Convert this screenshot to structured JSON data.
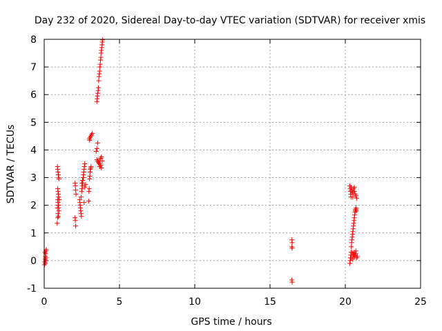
{
  "chart_data": {
    "type": "scatter",
    "title": "Day 232 of 2020, Sidereal Day-to-day VTEC variation (SDTVAR) for receiver xmis",
    "xlabel": "GPS time / hours",
    "ylabel": "SDTVAR / TECUs",
    "xlim": [
      0,
      25
    ],
    "ylim": [
      -1,
      8
    ],
    "xticks": [
      0,
      5,
      10,
      15,
      20,
      25
    ],
    "yticks": [
      -1,
      0,
      1,
      2,
      3,
      4,
      5,
      6,
      7,
      8
    ],
    "grid": true,
    "marker": "+",
    "color": "#ff0000",
    "series": [
      {
        "name": "SDTVAR",
        "points": [
          [
            0.02,
            -0.15
          ],
          [
            0.04,
            -0.05
          ],
          [
            0.06,
            0.05
          ],
          [
            0.08,
            0.15
          ],
          [
            0.1,
            0.25
          ],
          [
            0.12,
            0.35
          ],
          [
            0.14,
            0.4
          ],
          [
            0.08,
            -0.1
          ],
          [
            0.1,
            0.0
          ],
          [
            0.12,
            0.1
          ],
          [
            0.05,
            0.3
          ],
          [
            0.88,
            3.4
          ],
          [
            0.9,
            3.3
          ],
          [
            0.92,
            3.2
          ],
          [
            0.94,
            3.1
          ],
          [
            0.96,
            3.0
          ],
          [
            0.98,
            2.95
          ],
          [
            0.9,
            2.6
          ],
          [
            0.92,
            2.5
          ],
          [
            0.94,
            2.4
          ],
          [
            0.96,
            2.3
          ],
          [
            0.9,
            2.2
          ],
          [
            0.92,
            2.1
          ],
          [
            0.94,
            2.0
          ],
          [
            0.96,
            1.9
          ],
          [
            0.98,
            1.8
          ],
          [
            0.92,
            1.7
          ],
          [
            0.94,
            1.6
          ],
          [
            0.9,
            1.55
          ],
          [
            0.86,
            1.35
          ],
          [
            0.96,
            2.0
          ],
          [
            1.0,
            2.2
          ],
          [
            0.88,
            1.9
          ],
          [
            2.05,
            2.8
          ],
          [
            2.07,
            2.7
          ],
          [
            2.09,
            2.55
          ],
          [
            2.11,
            2.4
          ],
          [
            2.05,
            1.55
          ],
          [
            2.07,
            1.45
          ],
          [
            2.09,
            1.25
          ],
          [
            2.35,
            2.2
          ],
          [
            2.37,
            2.1
          ],
          [
            2.39,
            2.0
          ],
          [
            2.41,
            1.9
          ],
          [
            2.43,
            1.8
          ],
          [
            2.45,
            1.7
          ],
          [
            2.47,
            1.6
          ],
          [
            2.49,
            2.5
          ],
          [
            2.51,
            2.6
          ],
          [
            2.53,
            2.7
          ],
          [
            2.55,
            2.8
          ],
          [
            2.57,
            2.9
          ],
          [
            2.59,
            3.0
          ],
          [
            2.61,
            3.1
          ],
          [
            2.63,
            3.2
          ],
          [
            2.65,
            3.3
          ],
          [
            2.67,
            3.4
          ],
          [
            2.69,
            3.5
          ],
          [
            2.5,
            2.8
          ],
          [
            2.55,
            2.9
          ],
          [
            2.6,
            3.0
          ],
          [
            2.7,
            2.65
          ],
          [
            2.75,
            2.75
          ],
          [
            2.65,
            2.1
          ],
          [
            2.45,
            2.3
          ],
          [
            2.95,
            2.15
          ],
          [
            2.97,
            2.5
          ],
          [
            2.99,
            2.6
          ],
          [
            3.01,
            2.95
          ],
          [
            3.03,
            3.05
          ],
          [
            3.05,
            3.2
          ],
          [
            3.07,
            3.3
          ],
          [
            3.09,
            3.35
          ],
          [
            3.11,
            3.4
          ],
          [
            3.0,
            4.4
          ],
          [
            3.05,
            4.45
          ],
          [
            3.1,
            4.5
          ],
          [
            3.15,
            4.55
          ],
          [
            3.2,
            4.6
          ],
          [
            3.02,
            4.35
          ],
          [
            3.45,
            3.95
          ],
          [
            3.5,
            4.05
          ],
          [
            3.55,
            4.25
          ],
          [
            3.5,
            3.65
          ],
          [
            3.55,
            3.6
          ],
          [
            3.6,
            3.55
          ],
          [
            3.65,
            3.5
          ],
          [
            3.7,
            3.6
          ],
          [
            3.75,
            3.7
          ],
          [
            3.8,
            3.75
          ],
          [
            3.85,
            3.6
          ],
          [
            3.7,
            3.4
          ],
          [
            3.75,
            3.45
          ],
          [
            3.8,
            3.35
          ],
          [
            3.5,
            5.75
          ],
          [
            3.52,
            5.85
          ],
          [
            3.54,
            5.95
          ],
          [
            3.56,
            6.05
          ],
          [
            3.58,
            6.15
          ],
          [
            3.6,
            6.25
          ],
          [
            3.62,
            6.5
          ],
          [
            3.64,
            6.65
          ],
          [
            3.66,
            6.75
          ],
          [
            3.68,
            6.85
          ],
          [
            3.7,
            7.0
          ],
          [
            3.72,
            7.1
          ],
          [
            3.74,
            7.25
          ],
          [
            3.76,
            7.35
          ],
          [
            3.78,
            7.5
          ],
          [
            3.8,
            7.6
          ],
          [
            3.82,
            7.7
          ],
          [
            3.84,
            7.8
          ],
          [
            3.86,
            7.9
          ],
          [
            3.88,
            7.98
          ],
          [
            16.45,
            0.75
          ],
          [
            16.47,
            0.65
          ],
          [
            16.45,
            0.5
          ],
          [
            16.47,
            0.45
          ],
          [
            16.45,
            -0.7
          ],
          [
            16.47,
            -0.78
          ],
          [
            20.3,
            2.7
          ],
          [
            20.32,
            2.6
          ],
          [
            20.34,
            2.5
          ],
          [
            20.36,
            2.4
          ],
          [
            20.38,
            2.3
          ],
          [
            20.4,
            2.65
          ],
          [
            20.42,
            2.55
          ],
          [
            20.45,
            2.5
          ],
          [
            20.5,
            2.45
          ],
          [
            20.55,
            2.6
          ],
          [
            20.6,
            2.5
          ],
          [
            20.65,
            2.4
          ],
          [
            20.7,
            2.35
          ],
          [
            20.75,
            2.25
          ],
          [
            20.5,
            2.3
          ],
          [
            20.6,
            2.65
          ],
          [
            20.3,
            -0.1
          ],
          [
            20.32,
            0.0
          ],
          [
            20.34,
            0.1
          ],
          [
            20.36,
            0.2
          ],
          [
            20.38,
            0.3
          ],
          [
            20.4,
            0.5
          ],
          [
            20.42,
            0.65
          ],
          [
            20.44,
            0.75
          ],
          [
            20.46,
            0.85
          ],
          [
            20.48,
            0.95
          ],
          [
            20.5,
            1.05
          ],
          [
            20.52,
            1.15
          ],
          [
            20.54,
            1.25
          ],
          [
            20.56,
            1.35
          ],
          [
            20.58,
            1.45
          ],
          [
            20.6,
            1.55
          ],
          [
            20.62,
            1.65
          ],
          [
            20.64,
            1.75
          ],
          [
            20.66,
            1.8
          ],
          [
            20.68,
            1.85
          ],
          [
            20.7,
            1.9
          ],
          [
            20.72,
            1.85
          ],
          [
            20.74,
            1.8
          ],
          [
            20.45,
            0.3
          ],
          [
            20.5,
            0.25
          ],
          [
            20.55,
            0.2
          ],
          [
            20.6,
            0.15
          ],
          [
            20.65,
            0.2
          ],
          [
            20.7,
            0.25
          ],
          [
            20.75,
            0.1
          ],
          [
            20.8,
            0.15
          ],
          [
            20.4,
            0.1
          ],
          [
            20.5,
            0.05
          ],
          [
            20.6,
            0.3
          ],
          [
            20.7,
            0.35
          ]
        ]
      }
    ]
  }
}
